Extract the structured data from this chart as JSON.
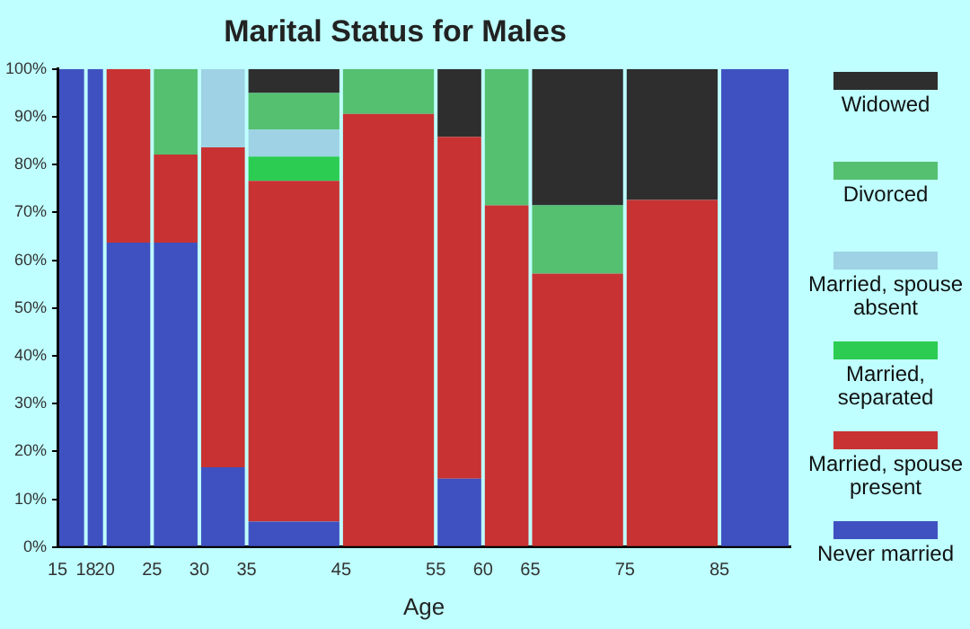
{
  "chart_data": {
    "type": "bar",
    "title": "Marital Status for Males",
    "xlabel": "Age",
    "stacked": true,
    "legend": "right",
    "grid": false,
    "x": [
      16.5,
      19,
      22.5,
      27.5,
      32.5,
      40,
      50,
      57.5,
      62.5,
      70,
      80,
      88.75
    ],
    "xlim": [
      15,
      92.5
    ],
    "xticks": [
      15,
      18,
      20,
      25,
      30,
      35,
      45,
      55,
      60,
      65,
      75,
      85
    ],
    "ylim": [
      0,
      100
    ],
    "yticks": [
      {
        "value": 0,
        "label": "0%"
      },
      {
        "value": 10,
        "label": "10%"
      },
      {
        "value": 20,
        "label": "20%"
      },
      {
        "value": 30,
        "label": "30%"
      },
      {
        "value": 40,
        "label": "40%"
      },
      {
        "value": 50,
        "label": "50%"
      },
      {
        "value": 60,
        "label": "60%"
      },
      {
        "value": 70,
        "label": "70%"
      },
      {
        "value": 80,
        "label": "80%"
      },
      {
        "value": 90,
        "label": "90%"
      },
      {
        "value": 100,
        "label": "100%"
      }
    ],
    "series": [
      {
        "name": "Never married",
        "color": "#3f51c0",
        "values": [
          100,
          100,
          63.7,
          63.7,
          16.7,
          5.3,
          null,
          14.3,
          null,
          null,
          null,
          100
        ]
      },
      {
        "name": "Married, spouse present",
        "color": "#c83232",
        "values": [
          null,
          null,
          36.3,
          18.4,
          66.9,
          71.3,
          90.6,
          71.5,
          71.5,
          57.2,
          72.6,
          null
        ]
      },
      {
        "name": "Married, separated",
        "color": "#2ccc52",
        "values": [
          null,
          null,
          null,
          null,
          null,
          5.1,
          null,
          null,
          null,
          null,
          null,
          null
        ]
      },
      {
        "name": "Married, spouse absent",
        "color": "#9fd2e4",
        "values": [
          null,
          null,
          null,
          null,
          16.4,
          5.6,
          null,
          null,
          null,
          null,
          null,
          null
        ]
      },
      {
        "name": "Divorced",
        "color": "#55c070",
        "values": [
          null,
          null,
          null,
          17.9,
          null,
          7.7,
          9.4,
          null,
          28.5,
          14.3,
          null,
          null
        ]
      },
      {
        "name": "Widowed",
        "color": "#2e2e2e",
        "values": [
          null,
          null,
          null,
          null,
          null,
          5.0,
          null,
          14.2,
          null,
          28.5,
          27.4,
          null
        ]
      }
    ]
  }
}
